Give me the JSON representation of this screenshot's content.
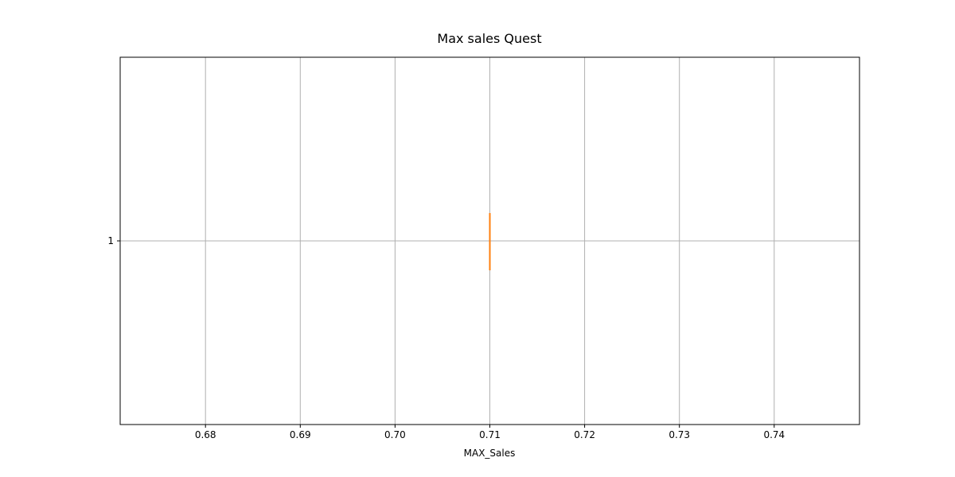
{
  "chart_data": {
    "type": "boxplot",
    "orientation": "horizontal",
    "title": "Max sales Quest",
    "xlabel": "MAX_Sales",
    "ylabel": "",
    "xlim": [
      0.671,
      0.749
    ],
    "x_ticks": [
      0.68,
      0.69,
      0.7,
      0.71,
      0.72,
      0.73,
      0.74
    ],
    "x_tick_labels": [
      "0.68",
      "0.69",
      "0.70",
      "0.71",
      "0.72",
      "0.73",
      "0.74"
    ],
    "y_ticks": [
      1
    ],
    "y_tick_labels": [
      "1"
    ],
    "grid": true,
    "series": [
      {
        "position": 1,
        "whisker_low": 0.71,
        "q1": 0.71,
        "median": 0.71,
        "q3": 0.71,
        "whisker_high": 0.71
      }
    ],
    "colors": {
      "box": "#000000",
      "median": "#ff7f0e",
      "grid": "#b0b0b0",
      "axes": "#000000"
    }
  }
}
